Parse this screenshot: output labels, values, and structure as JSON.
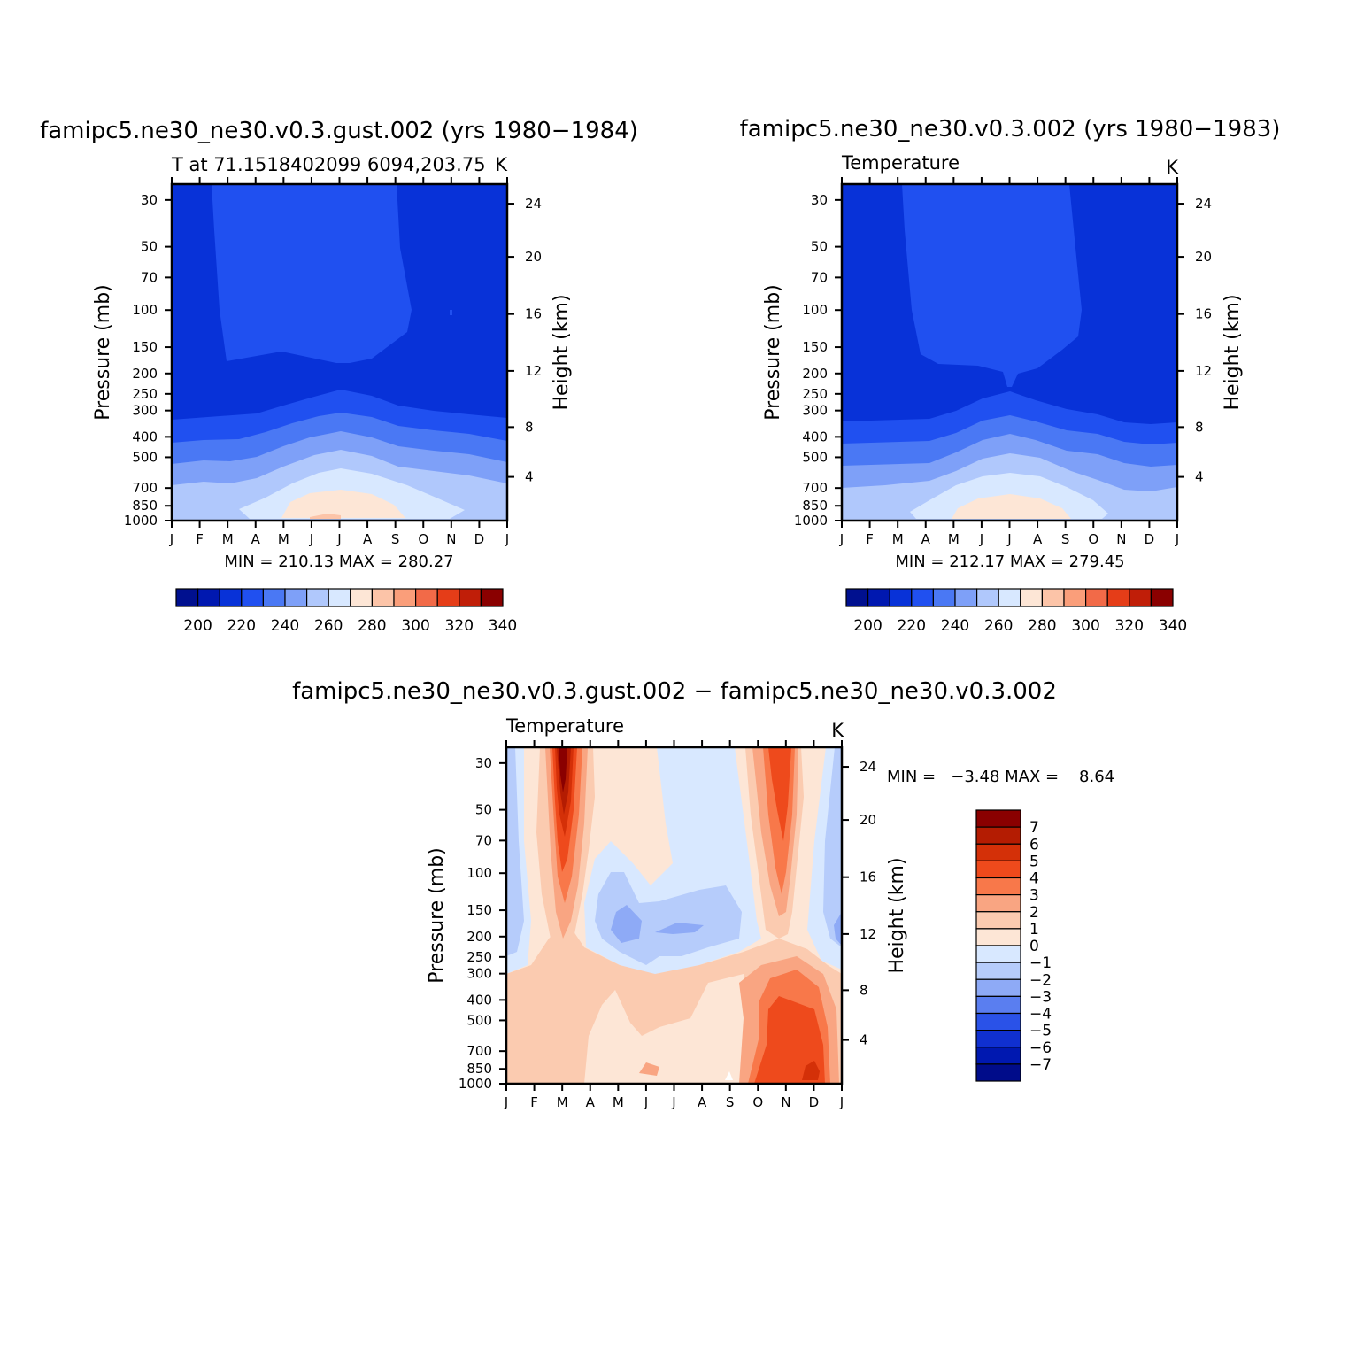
{
  "chart_data": [
    {
      "type": "heatmap",
      "title": "famipc5.ne30_ne30.v0.3.gust.002 (yrs 1980−1984)",
      "subtitle": "T at 71.1518402099 6094,203.75",
      "units": "K",
      "ylabel": "Pressure (mb)",
      "y2label": "Height (km)",
      "x_ticks": [
        "J",
        "F",
        "M",
        "A",
        "M",
        "J",
        "J",
        "A",
        "S",
        "O",
        "N",
        "D",
        "J"
      ],
      "y_ticks": [
        "30",
        "50",
        "70",
        "100",
        "150",
        "200",
        "250",
        "300",
        "400",
        "500",
        "700",
        "850",
        "1000"
      ],
      "y2_ticks": [
        "24",
        "20",
        "16",
        "12",
        "8",
        "4"
      ],
      "stats": "MIN = 210.13 MAX = 280.27",
      "colorbar": {
        "labels": [
          "200",
          "220",
          "240",
          "260",
          "280",
          "300",
          "320",
          "340"
        ]
      }
    },
    {
      "type": "heatmap",
      "title": "famipc5.ne30_ne30.v0.3.002 (yrs 1980−1983)",
      "subtitle": "Temperature",
      "units": "K",
      "ylabel": "Pressure (mb)",
      "y2label": "Height (km)",
      "x_ticks": [
        "J",
        "F",
        "M",
        "A",
        "M",
        "J",
        "J",
        "A",
        "S",
        "O",
        "N",
        "D",
        "J"
      ],
      "y_ticks": [
        "30",
        "50",
        "70",
        "100",
        "150",
        "200",
        "250",
        "300",
        "400",
        "500",
        "700",
        "850",
        "1000"
      ],
      "y2_ticks": [
        "24",
        "20",
        "16",
        "12",
        "8",
        "4"
      ],
      "stats": "MIN = 212.17 MAX = 279.45",
      "colorbar": {
        "labels": [
          "200",
          "220",
          "240",
          "260",
          "280",
          "300",
          "320",
          "340"
        ]
      }
    },
    {
      "type": "heatmap",
      "title": "famipc5.ne30_ne30.v0.3.gust.002 − famipc5.ne30_ne30.v0.3.002",
      "subtitle": "Temperature",
      "units": "K",
      "ylabel": "Pressure (mb)",
      "y2label": "Height (km)",
      "x_ticks": [
        "J",
        "F",
        "M",
        "A",
        "M",
        "J",
        "J",
        "A",
        "S",
        "O",
        "N",
        "D",
        "J"
      ],
      "y_ticks": [
        "30",
        "50",
        "70",
        "100",
        "150",
        "200",
        "250",
        "300",
        "400",
        "500",
        "700",
        "850",
        "1000"
      ],
      "y2_ticks": [
        "24",
        "20",
        "16",
        "12",
        "8",
        "4"
      ],
      "stats": "MIN =   −3.48 MAX =    8.64",
      "colorbar": {
        "labels": [
          "7",
          "6",
          "5",
          "4",
          "3",
          "2",
          "1",
          "0",
          "−1",
          "−2",
          "−3",
          "−4",
          "−5",
          "−6",
          "−7"
        ]
      }
    }
  ],
  "palette": {
    "t_levels": [
      "#00108f",
      "#0018b0",
      "#0832d8",
      "#2050f0",
      "#4a78f4",
      "#7ea0f8",
      "#b0c8fc",
      "#d8e8ff",
      "#fde6d6",
      "#fcc4a8",
      "#fa9e7a",
      "#f26a48",
      "#e53d18",
      "#c01e08",
      "#8a0000"
    ],
    "diff_levels": [
      "#8a0000",
      "#b41c02",
      "#d43008",
      "#ee4a1c",
      "#f8784a",
      "#f9a582",
      "#fbcbb0",
      "#fde6d6",
      "#d8e8ff",
      "#b6ccfb",
      "#8eaaf6",
      "#5a7ef0",
      "#2a52e8",
      "#1030d0",
      "#0018b0",
      "#000c8a"
    ]
  }
}
